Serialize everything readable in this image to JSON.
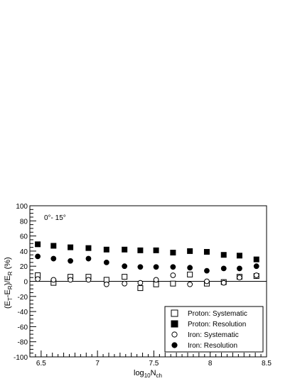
{
  "chart_data": {
    "type": "scatter",
    "annotation": "0°- 15°",
    "xlabel": {
      "base": "log",
      "sub": "10",
      "mid": "N",
      "sub2": "ch"
    },
    "ylabel": {
      "parts": [
        "(E",
        "T",
        "-E",
        "R",
        ")/E",
        "R",
        " (%)"
      ]
    },
    "xlim": [
      6.4,
      8.5
    ],
    "ylim": [
      -100,
      100
    ],
    "xticks": [
      6.5,
      7,
      7.5,
      8,
      8.5
    ],
    "xtick_labels": [
      "6.5",
      "7",
      "7.5",
      "8",
      "8.5"
    ],
    "yticks": [
      -100,
      -80,
      -60,
      -40,
      -20,
      0,
      20,
      40,
      60,
      80,
      100
    ],
    "ytick_labels": [
      "-100",
      "-80",
      "-60",
      "-40",
      "-20",
      "0",
      "20",
      "40",
      "60",
      "80",
      "100"
    ],
    "legend_position": "bottom-right",
    "x": [
      6.47,
      6.61,
      6.76,
      6.92,
      7.08,
      7.24,
      7.38,
      7.52,
      7.67,
      7.82,
      7.97,
      8.12,
      8.26,
      8.41
    ],
    "series": [
      {
        "name": "Proton: Systematic",
        "marker": "open-square",
        "values": [
          8,
          -2,
          6,
          6,
          2,
          6,
          -9,
          -4,
          -3,
          9,
          -3,
          -1,
          6,
          7
        ]
      },
      {
        "name": "Proton: Resolution",
        "marker": "filled-square",
        "values": [
          49,
          47,
          45,
          44,
          42,
          42,
          41,
          41,
          38,
          40,
          39,
          35,
          34,
          29
        ]
      },
      {
        "name": "Iron: Systematic",
        "marker": "open-circle",
        "values": [
          3,
          2,
          2,
          2,
          -4,
          -3,
          -2,
          2,
          8,
          -4,
          0,
          -2,
          5,
          8
        ]
      },
      {
        "name": "Iron: Resolution",
        "marker": "filled-circle",
        "values": [
          33,
          30,
          27,
          30,
          25,
          20,
          19,
          19,
          19,
          18,
          14,
          17,
          17,
          20
        ]
      }
    ]
  }
}
